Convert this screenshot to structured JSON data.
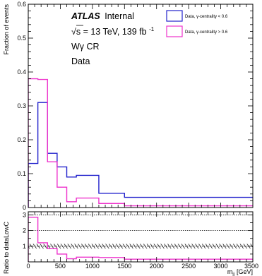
{
  "chart_data": [
    {
      "type": "line",
      "subtype": "step-histogram",
      "ylabel": "Fraction of events",
      "ylim": [
        0,
        0.6
      ],
      "xlim": [
        0,
        3500
      ],
      "yticks": [
        "0",
        "0.1",
        "0.2",
        "0.3",
        "0.4",
        "0.5",
        "0.6"
      ],
      "bin_edges": [
        0,
        150,
        300,
        450,
        600,
        750,
        1100,
        1500,
        3500
      ],
      "annotations": {
        "atlas": "ATLAS",
        "status": "Internal",
        "sqrt_s": "√s = 13 TeV, 139 fb",
        "lumi_sup": "-1",
        "region": "Wγ CR",
        "sample": "Data"
      },
      "legend_position": "top-right",
      "series": [
        {
          "name": "Data, γ-centrality < 0.6",
          "color": "#2222cc",
          "values": [
            0.13,
            0.31,
            0.16,
            0.12,
            0.09,
            0.095,
            0.042,
            0.03
          ]
        },
        {
          "name": "Data, γ-centrality > 0.6",
          "color": "#ee33cc",
          "values": [
            0.38,
            0.378,
            0.135,
            0.06,
            0.017,
            0.028,
            0.012,
            0.005
          ]
        }
      ]
    },
    {
      "type": "line",
      "subtype": "ratio-panel",
      "ylabel": "Ratio to dataLowC",
      "xlabel": "m",
      "xlabel_sub": "jj",
      "xlabel_unit": "[GeV]",
      "ylim": [
        0,
        3.2
      ],
      "xlim": [
        0,
        3500
      ],
      "yticks": [
        "1",
        "2",
        "3"
      ],
      "xticks": [
        "0",
        "500",
        "1000",
        "1500",
        "2000",
        "2500",
        "3000",
        "3500"
      ],
      "reference_lines": [
        1,
        2,
        3
      ],
      "uncertainty_band": [
        0.85,
        1.15
      ],
      "series": [
        {
          "name": "Data, γ-centrality > 0.6",
          "color": "#ee33cc",
          "values": [
            2.85,
            1.22,
            0.85,
            0.5,
            0.2,
            0.3,
            0.28,
            0.17
          ]
        }
      ]
    }
  ]
}
